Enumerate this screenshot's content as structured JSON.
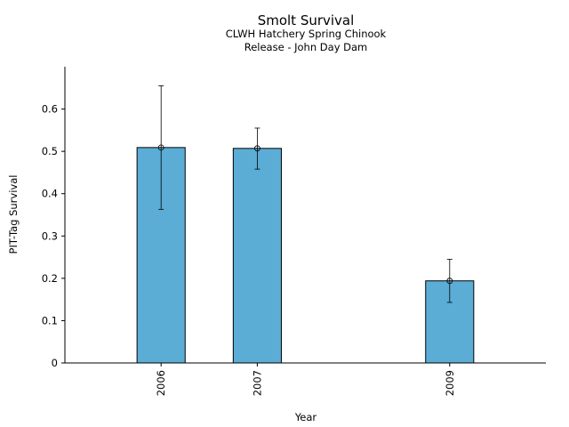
{
  "chart_data": {
    "type": "bar",
    "title": "Smolt Survival",
    "subtitle_lines": [
      "CLWH Hatchery Spring Chinook",
      "Release - John Day Dam"
    ],
    "xlabel": "Year",
    "ylabel": "PIT-Tag Survival",
    "categories": [
      "2006",
      "2007",
      "2009"
    ],
    "x": [
      2006,
      2007,
      2009
    ],
    "values": [
      0.509,
      0.507,
      0.194
    ],
    "error_bars": [
      {
        "low": 0.363,
        "high": 0.655
      },
      {
        "low": 0.458,
        "high": 0.555
      },
      {
        "low": 0.143,
        "high": 0.245
      }
    ],
    "ylim": [
      0,
      0.7
    ],
    "xlim": [
      2005,
      2010
    ],
    "yticks": [
      "0",
      "0.1",
      "0.2",
      "0.3",
      "0.4",
      "0.5",
      "0.6"
    ],
    "ytick_values": [
      0,
      0.1,
      0.2,
      0.3,
      0.4,
      0.5,
      0.6
    ],
    "grid": false,
    "colors": {
      "bar_fill": "#5BADD6",
      "bar_edge": "#000000",
      "error": "#000000"
    }
  }
}
